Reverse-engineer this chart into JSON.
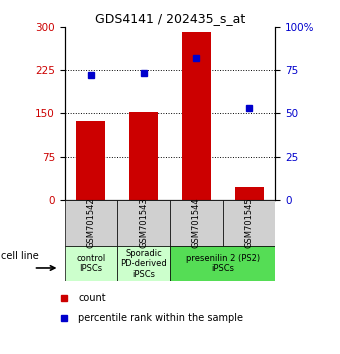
{
  "title": "GDS4141 / 202435_s_at",
  "samples": [
    "GSM701542",
    "GSM701543",
    "GSM701544",
    "GSM701545"
  ],
  "counts": [
    137,
    152,
    291,
    22
  ],
  "percentile_ranks": [
    72,
    73,
    82,
    53
  ],
  "left_ylim": [
    0,
    300
  ],
  "right_ylim": [
    0,
    100
  ],
  "left_yticks": [
    0,
    75,
    150,
    225,
    300
  ],
  "right_yticks": [
    0,
    25,
    50,
    75,
    100
  ],
  "right_yticklabels": [
    "0",
    "25",
    "50",
    "75",
    "100%"
  ],
  "bar_color": "#cc0000",
  "dot_color": "#0000cc",
  "sample_box_color": "#d0d0d0",
  "group_colors": [
    "#ccffcc",
    "#ccffcc",
    "#55dd55"
  ],
  "group_labels": [
    "control\nIPSCs",
    "Sporadic\nPD-derived\niPSCs",
    "presenilin 2 (PS2)\niPSCs"
  ],
  "group_starts": [
    0,
    1,
    2
  ],
  "group_ends": [
    1,
    2,
    4
  ],
  "cell_line_label": "cell line",
  "legend_count_label": "count",
  "legend_pct_label": "percentile rank within the sample",
  "bar_width": 0.55,
  "title_fontsize": 9,
  "tick_fontsize": 7.5,
  "sample_fontsize": 6,
  "group_fontsize": 6,
  "legend_fontsize": 7
}
